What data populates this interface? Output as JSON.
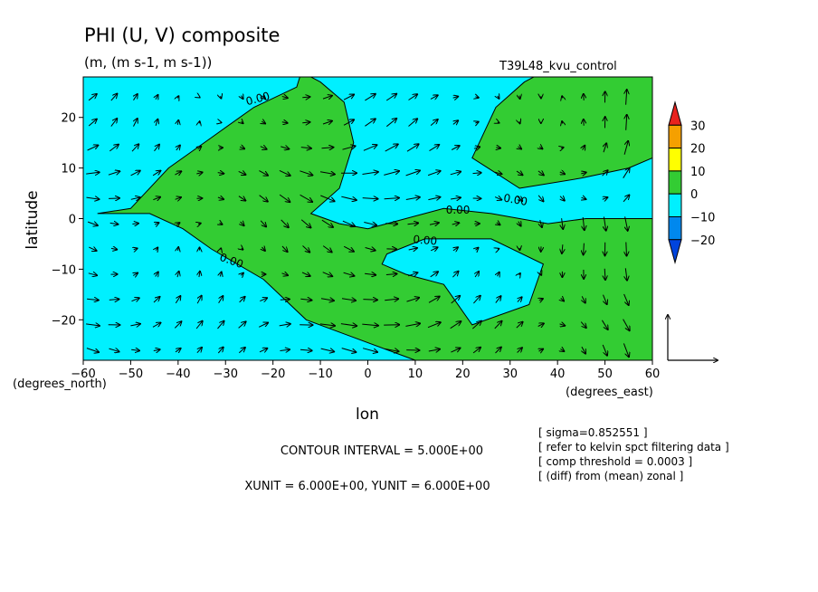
{
  "chart_data": {
    "type": "heatmap",
    "title": "PHI (U, V) composite",
    "units_line": "(m, (m s-1, m s-1))",
    "experiment": "T39L48_kvu_control",
    "xlabel": "lon",
    "ylabel": "latitude",
    "x_unit_label": "(degrees_east)",
    "y_unit_label": "(degrees_north)",
    "xlim": [
      -60,
      60
    ],
    "ylim": [
      -28,
      28
    ],
    "x_ticks": [
      -60,
      -50,
      -40,
      -30,
      -20,
      -10,
      0,
      10,
      20,
      30,
      40,
      50,
      60
    ],
    "x_tick_labels": [
      "−60",
      "−50",
      "−40",
      "−30",
      "−20",
      "−10",
      "0",
      "10",
      "20",
      "30",
      "40",
      "50",
      "60"
    ],
    "y_ticks": [
      20,
      10,
      0,
      -10,
      -20
    ],
    "y_tick_labels": [
      "20",
      "10",
      "0",
      "−10",
      "−20"
    ],
    "colorbar": {
      "levels": [
        30,
        20,
        10,
        0,
        -10,
        -20
      ],
      "labels": [
        "30",
        "20",
        "10",
        "0",
        "−10",
        "−20"
      ],
      "colors": [
        "#e8221e",
        "#f5a000",
        "#ffff00",
        "#33cc33",
        "#00f0ff",
        "#0088ee",
        "#0044dd"
      ]
    },
    "contour_labels": [
      "0.00",
      "0.00",
      "0.00",
      "0.00",
      "0.00",
      "0.00"
    ],
    "contour_interval": "CONTOUR INTERVAL = 5.000E+00",
    "vector_units": "XUNIT = 6.000E+00, YUNIT = 6.000E+00",
    "notes": [
      "[ sigma=0.852551 ]",
      "[ refer to kelvin spct filtering data ]",
      "[ comp threshold = 0.0003 ]",
      "[ (diff) from (mean) zonal ]"
    ],
    "positive_regions": [
      [
        [
          -57,
          1
        ],
        [
          -50,
          2
        ],
        [
          -42,
          10
        ],
        [
          -33,
          16
        ],
        [
          -24,
          22
        ],
        [
          -15,
          26
        ],
        [
          -14,
          29
        ],
        [
          -10,
          27
        ],
        [
          -5,
          23
        ],
        [
          -3,
          15
        ],
        [
          -6,
          6
        ],
        [
          -12,
          1
        ],
        [
          -6,
          -1
        ],
        [
          0,
          -2
        ],
        [
          8,
          0
        ],
        [
          16,
          2
        ],
        [
          26,
          1
        ],
        [
          38,
          -1
        ],
        [
          46,
          0
        ],
        [
          60,
          0
        ],
        [
          60,
          -28
        ],
        [
          27,
          -28
        ],
        [
          10,
          -28
        ],
        [
          -13,
          -20
        ],
        [
          -22,
          -12
        ],
        [
          -33,
          -6
        ],
        [
          -39,
          -2
        ],
        [
          -46,
          1
        ]
      ],
      [
        [
          22,
          12
        ],
        [
          27,
          22
        ],
        [
          33,
          27
        ],
        [
          37,
          29
        ],
        [
          60,
          29
        ],
        [
          60,
          12
        ],
        [
          55,
          10
        ],
        [
          45,
          8
        ],
        [
          32,
          6
        ],
        [
          27,
          9
        ]
      ]
    ],
    "negative_regions": [
      [
        [
          4,
          -7
        ],
        [
          12,
          -4
        ],
        [
          26,
          -4
        ],
        [
          37,
          -9
        ],
        [
          34,
          -17
        ],
        [
          22,
          -21
        ],
        [
          16,
          -13
        ],
        [
          8,
          -11
        ],
        [
          3,
          -9
        ]
      ]
    ],
    "small_yellow_region": [
      [
        51,
        29
      ],
      [
        57,
        29
      ],
      [
        56,
        28
      ],
      [
        52,
        28
      ]
    ]
  }
}
